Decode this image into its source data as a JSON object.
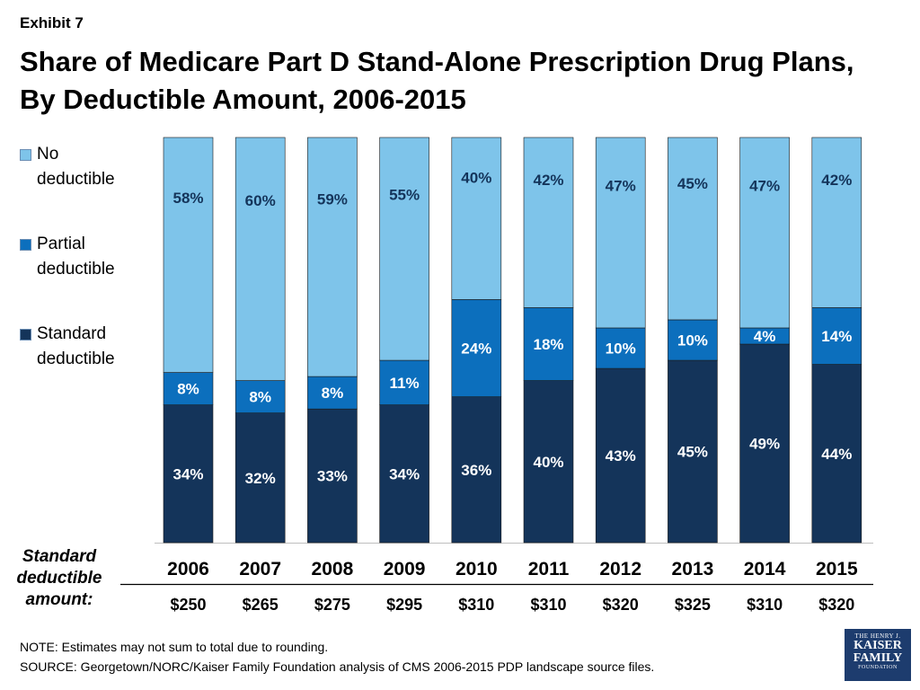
{
  "header": {
    "exhibit": "Exhibit 7",
    "title_line1": "Share of Medicare Part D Stand-Alone Prescription Drug Plans,",
    "title_line2": "By Deductible Amount, 2006-2015"
  },
  "legend": {
    "items": [
      {
        "line1": "No",
        "line2": "deductible",
        "color": "#7ec4ea"
      },
      {
        "line1": "Partial",
        "line2": "deductible",
        "color": "#0c6fbd"
      },
      {
        "line1": "Standard",
        "line2": "deductible",
        "color": "#14345a"
      }
    ]
  },
  "deductible_heading": {
    "line1": "Standard",
    "line2": "deductible",
    "line3": "amount:"
  },
  "chart_data": {
    "type": "bar",
    "stacked": true,
    "categories": [
      "2006",
      "2007",
      "2008",
      "2009",
      "2010",
      "2011",
      "2012",
      "2013",
      "2014",
      "2015"
    ],
    "series": [
      {
        "name": "Standard deductible",
        "values": [
          34,
          32,
          33,
          34,
          36,
          40,
          43,
          45,
          49,
          44
        ],
        "labels": [
          "34%",
          "32%",
          "33%",
          "34%",
          "36%",
          "40%",
          "43%",
          "45%",
          "49%",
          "44%"
        ],
        "color": "#14345a"
      },
      {
        "name": "Partial deductible",
        "values": [
          8,
          8,
          8,
          11,
          24,
          18,
          10,
          10,
          4,
          14
        ],
        "labels": [
          "8%",
          "8%",
          "8%",
          "11%",
          "24%",
          "18%",
          "10%",
          "10%",
          "4%",
          "14%"
        ],
        "color": "#0c6fbd"
      },
      {
        "name": "No deductible",
        "values": [
          58,
          60,
          59,
          55,
          40,
          42,
          47,
          45,
          47,
          42
        ],
        "labels": [
          "58%",
          "60%",
          "59%",
          "55%",
          "40%",
          "42%",
          "47%",
          "45%",
          "47%",
          "42%"
        ],
        "color": "#7ec4ea"
      }
    ],
    "standard_deductible_amounts": [
      "$250",
      "$265",
      "$275",
      "$295",
      "$310",
      "$310",
      "$320",
      "$325",
      "$310",
      "$320"
    ],
    "ylim": [
      0,
      100
    ],
    "grid": false,
    "legend_position": "left"
  },
  "footer": {
    "note": "NOTE: Estimates may not sum to total due to rounding.",
    "source": "SOURCE: Georgetown/NORC/Kaiser Family Foundation analysis of CMS 2006-2015 PDP landscape source files."
  },
  "logo": {
    "line1": "THE HENRY J.",
    "line2": "KAISER",
    "line3": "FAMILY",
    "line4": "FOUNDATION"
  }
}
